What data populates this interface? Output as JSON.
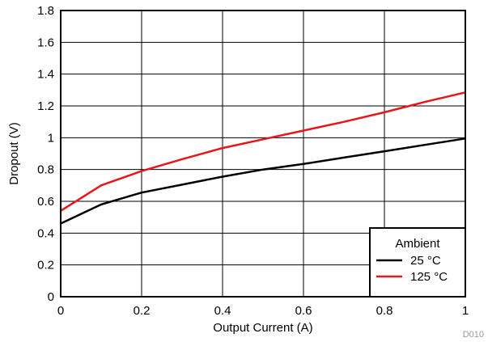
{
  "chart_data": {
    "type": "line",
    "title": "",
    "xlabel": "Output Current (A)",
    "ylabel": "Dropout (V)",
    "xlim": [
      0,
      1
    ],
    "ylim": [
      0,
      1.8
    ],
    "xticks": [
      0,
      0.2,
      0.4,
      0.6,
      0.8,
      1
    ],
    "yticks": [
      0,
      0.2,
      0.4,
      0.6,
      0.8,
      1,
      1.2,
      1.4,
      1.6,
      1.8
    ],
    "xtick_labels": [
      "0",
      "0.2",
      "0.4",
      "0.6",
      "0.8",
      "1"
    ],
    "ytick_labels": [
      "0",
      "0.2",
      "0.4",
      "0.6",
      "0.8",
      "1",
      "1.2",
      "1.4",
      "1.6",
      "1.8"
    ],
    "grid": true,
    "legend": {
      "title": "Ambient",
      "placement": "bottom-right"
    },
    "series": [
      {
        "name": "25 °C",
        "color": "#000000",
        "points": [
          [
            0,
            0.46
          ],
          [
            0.1,
            0.58
          ],
          [
            0.2,
            0.655
          ],
          [
            0.3,
            0.705
          ],
          [
            0.4,
            0.755
          ],
          [
            0.5,
            0.8
          ],
          [
            0.6,
            0.835
          ],
          [
            0.7,
            0.875
          ],
          [
            0.8,
            0.915
          ],
          [
            0.9,
            0.955
          ],
          [
            1.0,
            0.995
          ]
        ]
      },
      {
        "name": "125 °C",
        "color": "#e8151b",
        "points": [
          [
            0,
            0.54
          ],
          [
            0.1,
            0.7
          ],
          [
            0.2,
            0.79
          ],
          [
            0.3,
            0.865
          ],
          [
            0.4,
            0.935
          ],
          [
            0.5,
            0.99
          ],
          [
            0.6,
            1.045
          ],
          [
            0.7,
            1.1
          ],
          [
            0.8,
            1.16
          ],
          [
            0.9,
            1.225
          ],
          [
            1.0,
            1.285
          ]
        ]
      }
    ],
    "annotation": "D010"
  }
}
